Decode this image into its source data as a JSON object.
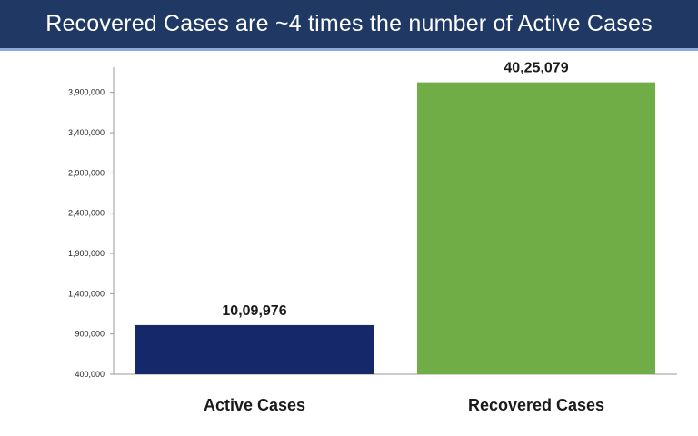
{
  "header": {
    "title": "Recovered Cases are ~4 times the number of Active Cases"
  },
  "colors": {
    "header_bg": "#1f3864",
    "active": "#14286a",
    "recovered": "#70ad47"
  },
  "chart_data": {
    "type": "bar",
    "title": "Recovered Cases are ~4 times the number of Active Cases",
    "categories": [
      "Active Cases",
      "Recovered Cases"
    ],
    "values": [
      1009976,
      4025079
    ],
    "data_labels": [
      "10,09,976",
      "40,25,079"
    ],
    "bar_colors": [
      "#14286a",
      "#70ad47"
    ],
    "ylim": [
      400000,
      4100000
    ],
    "yticks": [
      400000,
      900000,
      1400000,
      1900000,
      2400000,
      2900000,
      3400000,
      3900000
    ],
    "ytick_labels": [
      "400,000",
      "900,000",
      "1,400,000",
      "1,900,000",
      "2,400,000",
      "2,900,000",
      "3,400,000",
      "3,900,000"
    ],
    "xlabel": "",
    "ylabel": "",
    "grid": false,
    "legend": "none"
  }
}
